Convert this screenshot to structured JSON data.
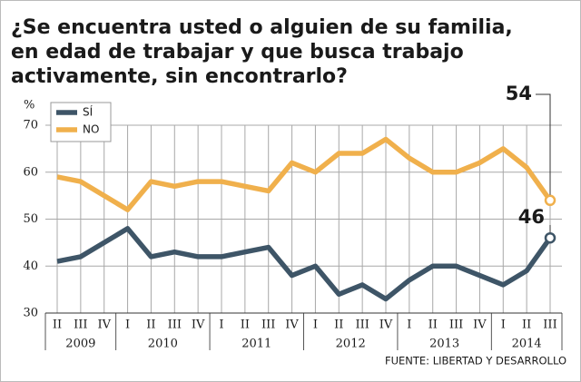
{
  "chart_data": {
    "type": "line",
    "title": [
      "¿Se encuentra usted o alguien de su familia,",
      "en edad de trabajar y que busca trabajo",
      "activamente, sin encontrarlo?"
    ],
    "y_label": "%",
    "categories": [
      "II",
      "III",
      "IV",
      "I",
      "II",
      "III",
      "IV",
      "I",
      "II",
      "III",
      "IV",
      "I",
      "II",
      "III",
      "IV",
      "I",
      "II",
      "III",
      "IV",
      "I",
      "II",
      "III"
    ],
    "years": [
      "2009",
      "2010",
      "2011",
      "2012",
      "2013",
      "2014"
    ],
    "series": [
      {
        "name": "SÍ",
        "color": "#3e5567",
        "values": [
          41,
          42,
          45,
          48,
          42,
          43,
          42,
          42,
          43,
          44,
          38,
          40,
          34,
          36,
          33,
          37,
          40,
          40,
          38,
          36,
          39,
          46
        ]
      },
      {
        "name": "NO",
        "color": "#f0b04c",
        "values": [
          59,
          58,
          55,
          52,
          58,
          57,
          58,
          58,
          57,
          56,
          62,
          60,
          64,
          64,
          67,
          63,
          60,
          60,
          62,
          65,
          61,
          54
        ]
      }
    ],
    "ylim": [
      30,
      70
    ],
    "yticks": [
      30,
      40,
      50,
      60,
      70
    ],
    "grid": true,
    "source": "FUENTE: LIBERTAD Y DESARROLLO"
  }
}
